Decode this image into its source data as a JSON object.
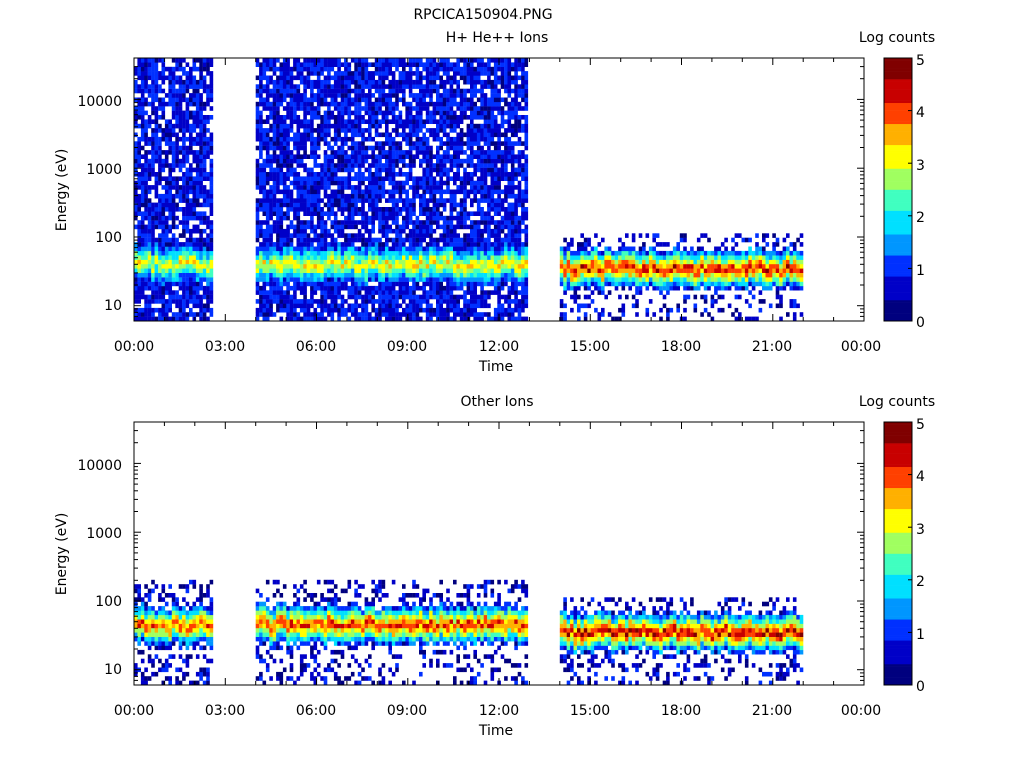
{
  "page": {
    "title": "RPCICA150904.PNG"
  },
  "colors": {
    "colormap": [
      "#00007f",
      "#0000c8",
      "#0030ff",
      "#0096ff",
      "#00e0ff",
      "#40ffc0",
      "#a0ff60",
      "#ffff00",
      "#ffb000",
      "#ff4000",
      "#c80000",
      "#800000"
    ]
  },
  "chart_data": [
    {
      "type": "heatmap",
      "title": "H+ He++ Ions",
      "xlabel": "Time",
      "ylabel": "Energy (eV)",
      "xticks": [
        "00:00",
        "03:00",
        "06:00",
        "09:00",
        "12:00",
        "15:00",
        "18:00",
        "21:00",
        "00:00"
      ],
      "xlim_hours": [
        0,
        24
      ],
      "ylim_eV": [
        6,
        40000
      ],
      "yscale": "log",
      "yticks": [
        "10",
        "100",
        "1000",
        "10000"
      ],
      "colorbar": {
        "label": "Log counts",
        "ticks": [
          "0",
          "1",
          "2",
          "3",
          "4",
          "5"
        ],
        "range": [
          0,
          5
        ]
      },
      "data_intervals": [
        {
          "start_hour": 0.0,
          "end_hour": 2.6,
          "max_energy_eV": 40000,
          "peak_energy_eV": 40,
          "peak_log_counts": 3.2,
          "background_log_counts": 0.3
        },
        {
          "start_hour": 4.0,
          "end_hour": 12.95,
          "max_energy_eV": 40000,
          "peak_energy_eV": 40,
          "peak_log_counts": 3.3,
          "background_log_counts": 0.3
        },
        {
          "start_hour": 14.0,
          "end_hour": 22.0,
          "max_energy_eV": 100,
          "peak_energy_eV": 35,
          "peak_log_counts": 4.3,
          "background_log_counts": 0.2
        }
      ]
    },
    {
      "type": "heatmap",
      "title": "Other Ions",
      "xlabel": "Time",
      "ylabel": "Energy (eV)",
      "xticks": [
        "00:00",
        "03:00",
        "06:00",
        "09:00",
        "12:00",
        "15:00",
        "18:00",
        "21:00",
        "00:00"
      ],
      "xlim_hours": [
        0,
        24
      ],
      "ylim_eV": [
        6,
        40000
      ],
      "yscale": "log",
      "yticks": [
        "10",
        "100",
        "1000",
        "10000"
      ],
      "colorbar": {
        "label": "Log counts",
        "ticks": [
          "0",
          "1",
          "2",
          "3",
          "4",
          "5"
        ],
        "range": [
          0,
          5
        ]
      },
      "data_intervals": [
        {
          "start_hour": 0.0,
          "end_hour": 2.6,
          "max_energy_eV": 200,
          "peak_energy_eV": 45,
          "peak_log_counts": 4.0,
          "background_log_counts": 0.1
        },
        {
          "start_hour": 4.0,
          "end_hour": 12.95,
          "max_energy_eV": 200,
          "peak_energy_eV": 45,
          "peak_log_counts": 4.2,
          "background_log_counts": 0.1
        },
        {
          "start_hour": 14.0,
          "end_hour": 22.0,
          "max_energy_eV": 100,
          "peak_energy_eV": 35,
          "peak_log_counts": 4.5,
          "background_log_counts": 0.1
        }
      ]
    }
  ]
}
